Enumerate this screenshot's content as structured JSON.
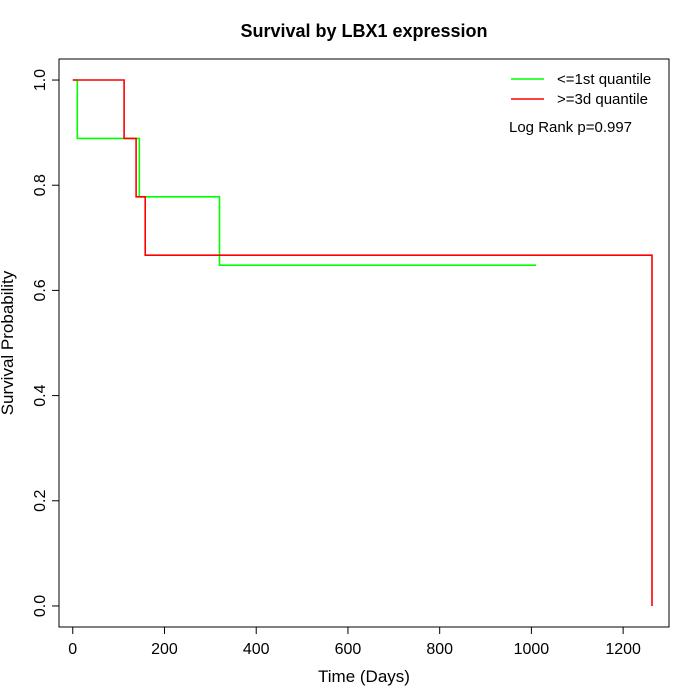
{
  "chart_data": {
    "type": "line",
    "title": "Survival by LBX1 expression",
    "xlabel": "Time (Days)",
    "ylabel": "Survival Probability",
    "xlim": [
      -30,
      1300
    ],
    "ylim": [
      -0.04,
      1.04
    ],
    "x_ticks": [
      0,
      200,
      400,
      600,
      800,
      1000,
      1200
    ],
    "y_ticks": [
      0.0,
      0.2,
      0.4,
      0.6,
      0.8,
      1.0
    ],
    "x_tick_labels": [
      "0",
      "200",
      "400",
      "600",
      "800",
      "1000",
      "1200"
    ],
    "y_tick_labels": [
      "0.0",
      "0.2",
      "0.4",
      "0.6",
      "0.8",
      "1.0"
    ],
    "grid": false,
    "legend_position": "top-right",
    "annotation": "Log Rank p=0.997",
    "series": [
      {
        "name": "<=1st quantile",
        "color": "#00ff00",
        "x": [
          0,
          10,
          10,
          145,
          145,
          320,
          320,
          1010
        ],
        "y": [
          1.0,
          1.0,
          0.889,
          0.889,
          0.778,
          0.778,
          0.648,
          0.648
        ]
      },
      {
        "name": ">=3d quantile",
        "color": "#ff0000",
        "x": [
          0,
          112,
          112,
          138,
          138,
          158,
          158,
          1263,
          1263
        ],
        "y": [
          1.0,
          1.0,
          0.889,
          0.889,
          0.778,
          0.778,
          0.667,
          0.667,
          0.0
        ]
      }
    ]
  }
}
